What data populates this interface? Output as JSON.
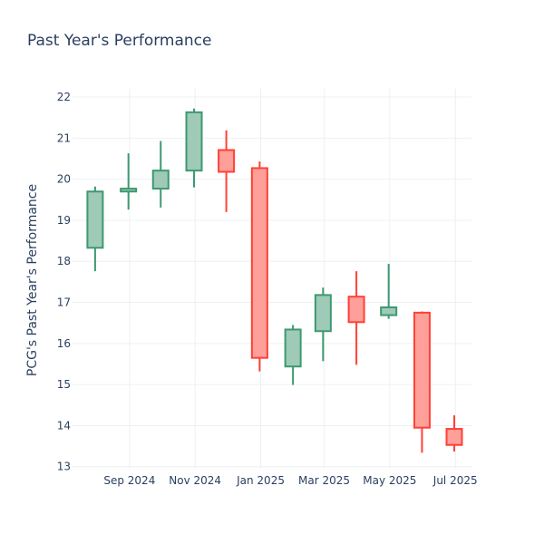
{
  "chart_data": {
    "type": "candlestick",
    "title": "Past Year's Performance",
    "xlabel": "",
    "ylabel": "PCG's Past Year's Performance",
    "ylim": [
      12.95,
      22.2
    ],
    "y_ticks": [
      13,
      14,
      15,
      16,
      17,
      18,
      19,
      20,
      21,
      22
    ],
    "x_ticks": [
      {
        "label": "Sep 2024",
        "date": "2024-09-01"
      },
      {
        "label": "Nov 2024",
        "date": "2024-11-01"
      },
      {
        "label": "Jan 2025",
        "date": "2025-01-01"
      },
      {
        "label": "Mar 2025",
        "date": "2025-03-01"
      },
      {
        "label": "May 2025",
        "date": "2025-05-01"
      },
      {
        "label": "Jul 2025",
        "date": "2025-07-01"
      }
    ],
    "x_range": [
      "2024-07-10",
      "2025-07-16"
    ],
    "grid": true,
    "colors": {
      "increasing": "#3d9970",
      "decreasing": "#ff4136",
      "increasing_fill": "#9ecab7",
      "decreasing_fill": "#ff9f9a"
    },
    "candles": [
      {
        "date": "2024-07-31",
        "open": 18.33,
        "high": 19.82,
        "low": 17.76,
        "close": 19.7
      },
      {
        "date": "2024-08-31",
        "open": 19.7,
        "high": 20.63,
        "low": 19.26,
        "close": 19.77
      },
      {
        "date": "2024-09-30",
        "open": 19.77,
        "high": 20.93,
        "low": 19.31,
        "close": 20.21
      },
      {
        "date": "2024-10-31",
        "open": 20.21,
        "high": 21.72,
        "low": 19.8,
        "close": 21.63
      },
      {
        "date": "2024-11-30",
        "open": 20.71,
        "high": 21.19,
        "low": 19.2,
        "close": 20.18
      },
      {
        "date": "2024-12-31",
        "open": 20.27,
        "high": 20.43,
        "low": 15.32,
        "close": 15.65
      },
      {
        "date": "2025-01-31",
        "open": 15.44,
        "high": 16.45,
        "low": 14.99,
        "close": 16.34
      },
      {
        "date": "2025-02-28",
        "open": 16.3,
        "high": 17.36,
        "low": 15.57,
        "close": 17.18
      },
      {
        "date": "2025-03-31",
        "open": 17.14,
        "high": 17.76,
        "low": 15.48,
        "close": 16.52
      },
      {
        "date": "2025-04-30",
        "open": 16.69,
        "high": 17.94,
        "low": 16.6,
        "close": 16.88
      },
      {
        "date": "2025-05-31",
        "open": 16.75,
        "high": 16.78,
        "low": 13.34,
        "close": 13.95
      },
      {
        "date": "2025-06-30",
        "open": 13.92,
        "high": 14.25,
        "low": 13.37,
        "close": 13.53
      }
    ]
  }
}
